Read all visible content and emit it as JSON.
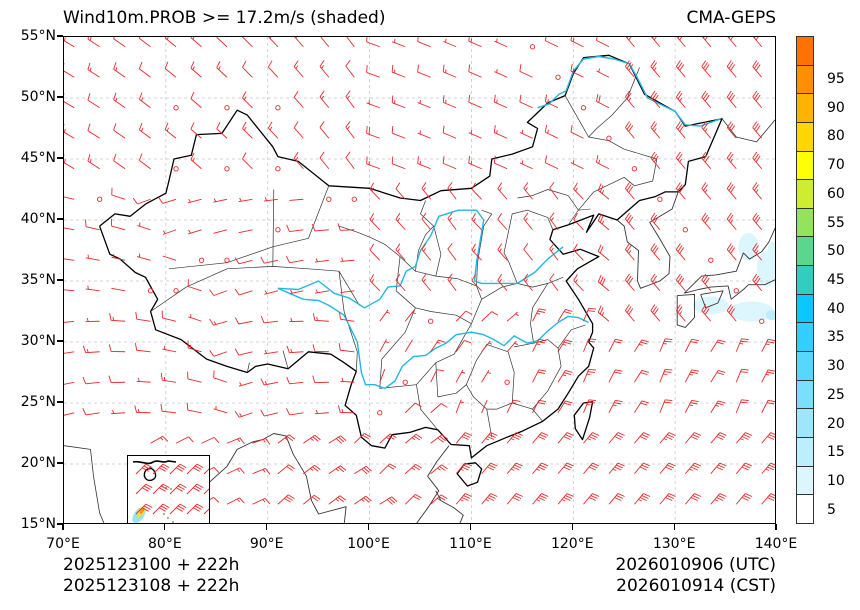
{
  "header": {
    "title_left": "Wind10m.PROB >= 17.2m/s (shaded)",
    "title_right": "CMA-GEPS"
  },
  "map": {
    "extent": {
      "lon_min": 70,
      "lon_max": 140,
      "lat_min": 15,
      "lat_max": 55
    },
    "y_ticks": [
      {
        "label": "55°N",
        "lat": 55
      },
      {
        "label": "50°N",
        "lat": 50
      },
      {
        "label": "45°N",
        "lat": 45
      },
      {
        "label": "40°N",
        "lat": 40
      },
      {
        "label": "35°N",
        "lat": 35
      },
      {
        "label": "30°N",
        "lat": 30
      },
      {
        "label": "25°N",
        "lat": 25
      },
      {
        "label": "20°N",
        "lat": 20
      },
      {
        "label": "15°N",
        "lat": 15
      }
    ],
    "x_ticks": [
      {
        "label": "70°E",
        "lon": 70
      },
      {
        "label": "80°E",
        "lon": 80
      },
      {
        "label": "90°E",
        "lon": 90
      },
      {
        "label": "100°E",
        "lon": 100
      },
      {
        "label": "110°E",
        "lon": 110
      },
      {
        "label": "120°E",
        "lon": 120
      },
      {
        "label": "130°E",
        "lon": 130
      },
      {
        "label": "140°E",
        "lon": 140
      }
    ],
    "colors": {
      "barb": "#e8282a",
      "border": "#000000",
      "province": "#333333",
      "river": "#22b8e0",
      "grid": "#c8c8c8"
    },
    "inset_label": "South China Sea inset"
  },
  "colorbar": {
    "levels": [
      "5",
      "10",
      "15",
      "20",
      "25",
      "30",
      "35",
      "40",
      "45",
      "50",
      "55",
      "60",
      "70",
      "80",
      "90",
      "95"
    ],
    "colors_bottom_to_top": [
      "#ffffff",
      "#dcf6fe",
      "#bdeefd",
      "#9fe6fd",
      "#7adefd",
      "#57d6fe",
      "#33cdfe",
      "#0bc7fd",
      "#32cdc0",
      "#5bd68d",
      "#95e35c",
      "#cfed2f",
      "#fefe04",
      "#fed703",
      "#feb302",
      "#fe8f03",
      "#fe7203"
    ]
  },
  "footer": {
    "init_utc": "2025123100 + 222h",
    "init_cst": "2025123108 + 222h",
    "valid_utc": "2026010906 (UTC)",
    "valid_cst": "2026010914 (CST)"
  }
}
